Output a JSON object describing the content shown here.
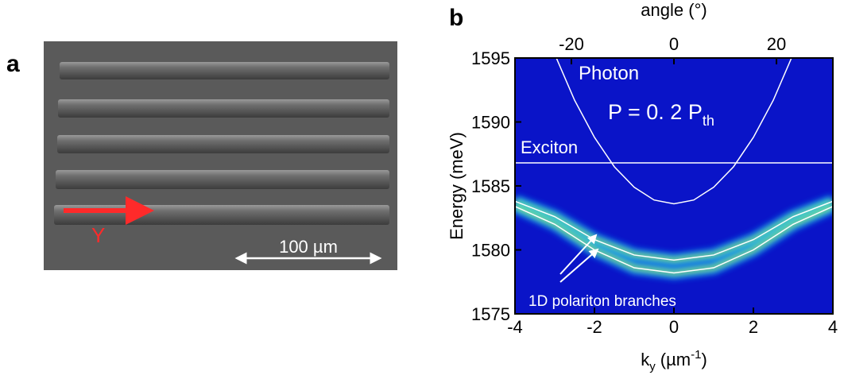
{
  "panel_a": {
    "label": "a",
    "arrow_label": "Y",
    "scale_bar": "100 µm"
  },
  "chart_data": {
    "type": "line",
    "label": "b",
    "x2label": "angle (°)",
    "ylabel": "Energy (meV)",
    "xlabel": {
      "main": "k",
      "sub": "y",
      "unit": " (µm",
      "sup": "-1",
      "close": ")"
    },
    "xlim": [
      -4,
      4
    ],
    "xticks": [
      -4,
      -2,
      0,
      2,
      4
    ],
    "x2lim": [
      -31,
      31
    ],
    "x2ticks": [
      -20,
      0,
      20
    ],
    "ylim": [
      1575,
      1595
    ],
    "yticks": [
      1575,
      1580,
      1585,
      1590,
      1595
    ],
    "annotation": {
      "main": "P = 0. 2 P",
      "sub": "th"
    },
    "branch_label": "1D polariton branches",
    "series": [
      {
        "name": "Photon",
        "color": "#ffffff",
        "x": [
          -3,
          -2.5,
          -2,
          -1.5,
          -1,
          -0.5,
          0,
          0.5,
          1,
          1.5,
          2,
          2.5,
          3
        ],
        "values": [
          1595.3,
          1591.7,
          1588.8,
          1586.5,
          1584.9,
          1583.9,
          1583.6,
          1583.9,
          1584.9,
          1586.5,
          1588.8,
          1591.7,
          1595.3
        ]
      },
      {
        "name": "Exciton",
        "color": "#ffffff",
        "x": [
          -4,
          4
        ],
        "values": [
          1586.8,
          1586.8
        ]
      },
      {
        "color": "#ffffff",
        "x": [
          -4,
          -3,
          -2,
          -1,
          0,
          1,
          2,
          3,
          4
        ],
        "values": [
          1583.8,
          1582.6,
          1580.8,
          1579.6,
          1579.2,
          1579.6,
          1580.8,
          1582.6,
          1583.8
        ]
      },
      {
        "color": "#ffffff",
        "x": [
          -4,
          -3,
          -2,
          -1,
          0,
          1,
          2,
          3,
          4
        ],
        "values": [
          1583.4,
          1582.0,
          1580.0,
          1578.6,
          1578.2,
          1578.6,
          1580.0,
          1582.0,
          1583.4
        ]
      }
    ]
  }
}
